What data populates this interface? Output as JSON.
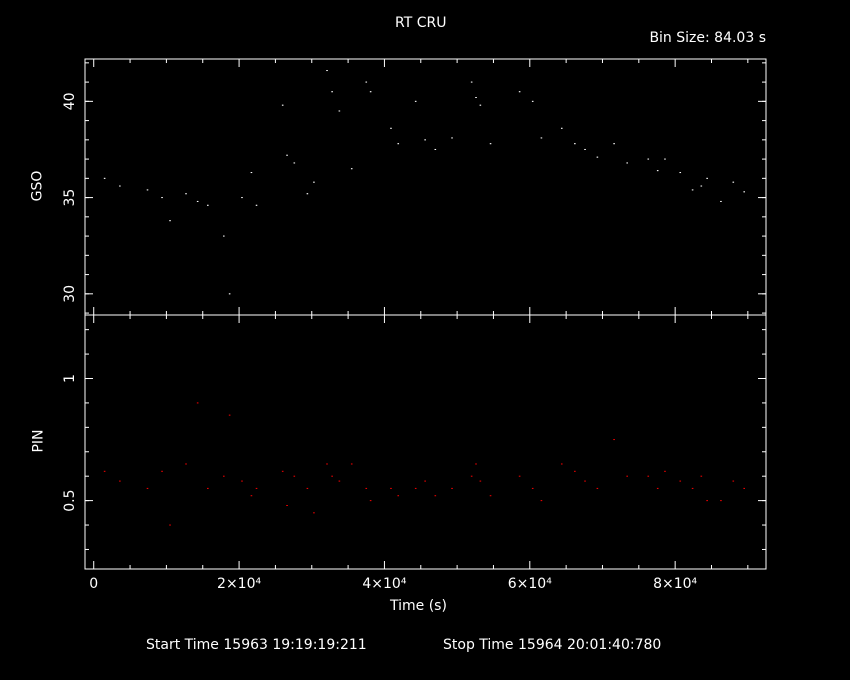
{
  "title": "RT CRU",
  "bin_size_label": "Bin Size:",
  "bin_size_value": "84.03 s",
  "start_time_label": "Start Time",
  "start_time": "15963 19:19:19:211",
  "stop_time_label": "Stop Time",
  "stop_time": "15964 20:01:40:780",
  "colors": {
    "background": "#000000",
    "axes": "#ffffff",
    "gso": "#ffffff",
    "pin": "#ff0000"
  },
  "chart_data": [
    {
      "type": "scatter",
      "panel": "top",
      "ylabel": "GSO",
      "xlabel": "",
      "xlim": [
        -1200,
        92500
      ],
      "ylim": [
        28.9,
        42.2
      ],
      "yticks": [
        30,
        35,
        40
      ],
      "x_tick_labels_shown": false,
      "series": [
        {
          "color": "#ffffff",
          "points": [
            [
              1500,
              36.0
            ],
            [
              3600,
              35.6
            ],
            [
              7400,
              35.4
            ],
            [
              9400,
              35.0
            ],
            [
              10500,
              33.8
            ],
            [
              12700,
              35.2
            ],
            [
              14300,
              34.8
            ],
            [
              15700,
              34.6
            ],
            [
              17900,
              33.0
            ],
            [
              18700,
              30.0
            ],
            [
              20400,
              35.0
            ],
            [
              21700,
              36.3
            ],
            [
              22400,
              34.6
            ],
            [
              26000,
              39.8
            ],
            [
              26600,
              37.2
            ],
            [
              27600,
              36.8
            ],
            [
              29400,
              35.2
            ],
            [
              30300,
              35.8
            ],
            [
              32100,
              41.6
            ],
            [
              32800,
              40.5
            ],
            [
              33800,
              39.5
            ],
            [
              35500,
              36.5
            ],
            [
              37500,
              41.0
            ],
            [
              38100,
              40.5
            ],
            [
              40900,
              38.6
            ],
            [
              41900,
              37.8
            ],
            [
              44300,
              40.0
            ],
            [
              45600,
              38.0
            ],
            [
              47000,
              37.5
            ],
            [
              49300,
              38.1
            ],
            [
              52000,
              41.0
            ],
            [
              52600,
              40.2
            ],
            [
              53200,
              39.8
            ],
            [
              54600,
              37.8
            ],
            [
              58600,
              40.5
            ],
            [
              60400,
              40.0
            ],
            [
              61600,
              38.1
            ],
            [
              64400,
              38.6
            ],
            [
              66200,
              37.8
            ],
            [
              67600,
              37.5
            ],
            [
              69300,
              37.1
            ],
            [
              71600,
              37.8
            ],
            [
              73400,
              36.8
            ],
            [
              76300,
              37.0
            ],
            [
              77600,
              36.4
            ],
            [
              78600,
              37.0
            ],
            [
              80700,
              36.3
            ],
            [
              82400,
              35.4
            ],
            [
              83600,
              35.6
            ],
            [
              84400,
              36.0
            ],
            [
              86300,
              34.8
            ],
            [
              88000,
              35.8
            ],
            [
              89500,
              35.3
            ]
          ]
        }
      ]
    },
    {
      "type": "scatter",
      "panel": "bottom",
      "ylabel": "PIN",
      "xlabel": "Time (s)",
      "xlim": [
        -1200,
        92500
      ],
      "ylim": [
        0.22,
        1.26
      ],
      "yticks": [
        0.5,
        1
      ],
      "ytick_labels": [
        "0.5",
        "1"
      ],
      "xticks": [
        0,
        20000,
        40000,
        60000,
        80000
      ],
      "xtick_labels": [
        "0",
        "2×10⁴",
        "4×10⁴",
        "6×10⁴",
        "8×10⁴"
      ],
      "series": [
        {
          "color": "#ff0000",
          "points": [
            [
              1500,
              0.62
            ],
            [
              3600,
              0.58
            ],
            [
              7400,
              0.55
            ],
            [
              9400,
              0.62
            ],
            [
              10500,
              0.4
            ],
            [
              12700,
              0.65
            ],
            [
              14300,
              0.9
            ],
            [
              15700,
              0.55
            ],
            [
              17900,
              0.6
            ],
            [
              18700,
              0.85
            ],
            [
              20400,
              0.58
            ],
            [
              21700,
              0.52
            ],
            [
              22400,
              0.55
            ],
            [
              26000,
              0.62
            ],
            [
              26600,
              0.48
            ],
            [
              27600,
              0.6
            ],
            [
              29400,
              0.55
            ],
            [
              30300,
              0.45
            ],
            [
              32100,
              0.65
            ],
            [
              32800,
              0.6
            ],
            [
              33800,
              0.58
            ],
            [
              35500,
              0.65
            ],
            [
              37500,
              0.55
            ],
            [
              38100,
              0.5
            ],
            [
              40900,
              0.55
            ],
            [
              41900,
              0.52
            ],
            [
              44300,
              0.55
            ],
            [
              45600,
              0.58
            ],
            [
              47000,
              0.52
            ],
            [
              49300,
              0.55
            ],
            [
              52000,
              0.6
            ],
            [
              52600,
              0.65
            ],
            [
              53200,
              0.58
            ],
            [
              54600,
              0.52
            ],
            [
              58600,
              0.6
            ],
            [
              60400,
              0.55
            ],
            [
              61600,
              0.5
            ],
            [
              64400,
              0.65
            ],
            [
              66200,
              0.62
            ],
            [
              67600,
              0.58
            ],
            [
              69300,
              0.55
            ],
            [
              71600,
              0.75
            ],
            [
              73400,
              0.6
            ],
            [
              76300,
              0.6
            ],
            [
              77600,
              0.55
            ],
            [
              78600,
              0.62
            ],
            [
              80700,
              0.58
            ],
            [
              82400,
              0.55
            ],
            [
              83600,
              0.6
            ],
            [
              84400,
              0.5
            ],
            [
              86300,
              0.5
            ],
            [
              88000,
              0.58
            ],
            [
              89500,
              0.55
            ]
          ]
        }
      ]
    }
  ]
}
